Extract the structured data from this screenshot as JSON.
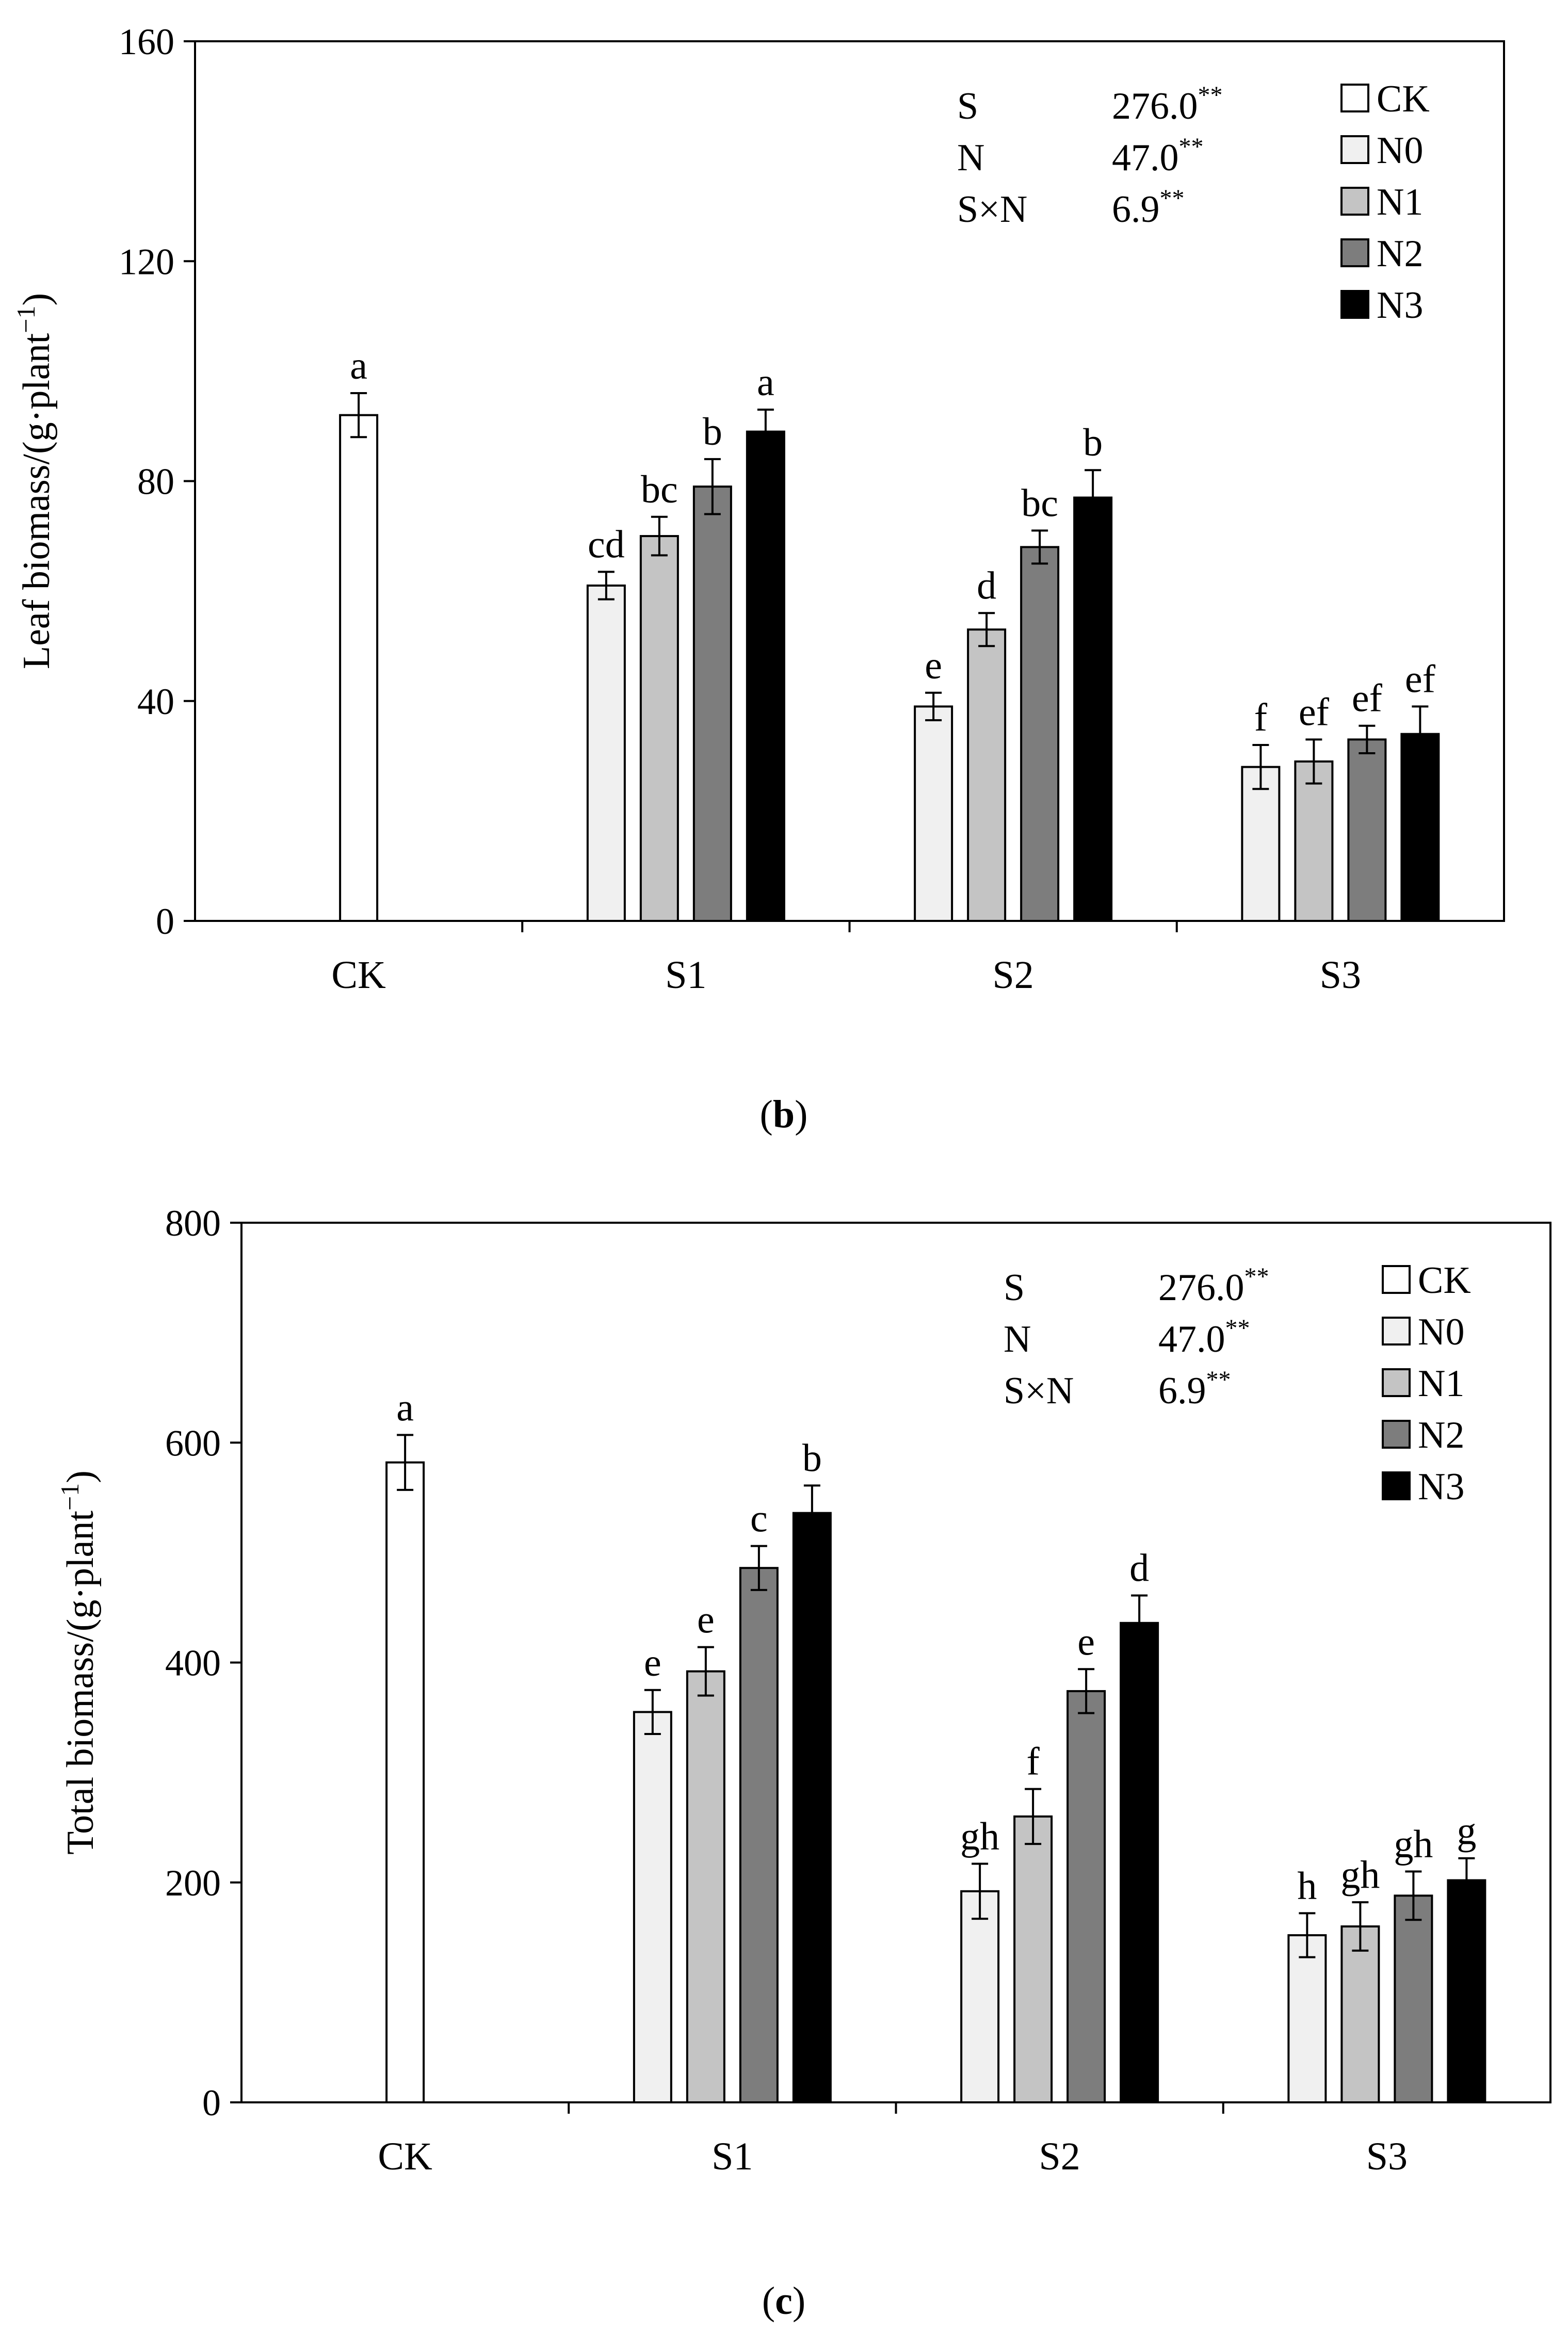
{
  "colors": {
    "CK": "#ffffff",
    "N0": "#f0f0f0",
    "N1": "#c4c4c4",
    "N2": "#7d7d7d",
    "N3": "#000000",
    "outline": "#000000"
  },
  "chart_data": [
    {
      "type": "bar",
      "panel_label": "b",
      "caption": "(b)",
      "ylabel": "Leaf biomass/(g·plant−1)",
      "xlabel": "",
      "ylim": [
        0,
        160
      ],
      "yticks": [
        0,
        40,
        80,
        120,
        160
      ],
      "categories": [
        "CK",
        "S1",
        "S2",
        "S3"
      ],
      "legend": [
        "CK",
        "N0",
        "N1",
        "N2",
        "N3"
      ],
      "legend_position": "top-right",
      "stats": [
        {
          "factor": "S",
          "value": "276.0",
          "sig": "**"
        },
        {
          "factor": "N",
          "value": "47.0",
          "sig": "**"
        },
        {
          "factor": "S×N",
          "value": "6.9",
          "sig": "**"
        }
      ],
      "series": [
        {
          "name": "CK",
          "values": [
            92,
            null,
            null,
            null
          ],
          "errors": [
            4,
            null,
            null,
            null
          ],
          "letters": [
            "a",
            null,
            null,
            null
          ]
        },
        {
          "name": "N0",
          "values": [
            null,
            61,
            39,
            28
          ],
          "errors": [
            null,
            2.5,
            2.5,
            4
          ],
          "letters": [
            null,
            "cd",
            "e",
            "f"
          ]
        },
        {
          "name": "N1",
          "values": [
            null,
            70,
            53,
            29
          ],
          "errors": [
            null,
            3.5,
            3,
            4
          ],
          "letters": [
            null,
            "bc",
            "d",
            "ef"
          ]
        },
        {
          "name": "N2",
          "values": [
            null,
            79,
            68,
            33
          ],
          "errors": [
            null,
            5,
            3,
            2.5
          ],
          "letters": [
            null,
            "b",
            "bc",
            "ef"
          ]
        },
        {
          "name": "N3",
          "values": [
            null,
            89,
            77,
            34
          ],
          "errors": [
            null,
            4,
            5,
            5
          ],
          "letters": [
            null,
            "a",
            "b",
            "ef"
          ]
        }
      ]
    },
    {
      "type": "bar",
      "panel_label": "c",
      "caption": "(c)",
      "ylabel": "Total biomass/(g·plant−1)",
      "xlabel": "",
      "ylim": [
        0,
        800
      ],
      "yticks": [
        0,
        200,
        400,
        600,
        800
      ],
      "categories": [
        "CK",
        "S1",
        "S2",
        "S3"
      ],
      "legend": [
        "CK",
        "N0",
        "N1",
        "N2",
        "N3"
      ],
      "legend_position": "top-right",
      "stats": [
        {
          "factor": "S",
          "value": "276.0",
          "sig": "**"
        },
        {
          "factor": "N",
          "value": "47.0",
          "sig": "**"
        },
        {
          "factor": "S×N",
          "value": "6.9",
          "sig": "**"
        }
      ],
      "series": [
        {
          "name": "CK",
          "values": [
            582,
            null,
            null,
            null
          ],
          "errors": [
            25,
            null,
            null,
            null
          ],
          "letters": [
            "a",
            null,
            null,
            null
          ]
        },
        {
          "name": "N0",
          "values": [
            null,
            355,
            192,
            152
          ],
          "errors": [
            null,
            20,
            25,
            20
          ],
          "letters": [
            null,
            "e",
            "gh",
            "h"
          ]
        },
        {
          "name": "N1",
          "values": [
            null,
            392,
            260,
            160
          ],
          "errors": [
            null,
            22,
            25,
            22
          ],
          "letters": [
            null,
            "e",
            "f",
            "gh"
          ]
        },
        {
          "name": "N2",
          "values": [
            null,
            486,
            374,
            188
          ],
          "errors": [
            null,
            20,
            20,
            22
          ],
          "letters": [
            null,
            "c",
            "e",
            "gh"
          ]
        },
        {
          "name": "N3",
          "values": [
            null,
            536,
            436,
            202
          ],
          "errors": [
            null,
            25,
            25,
            20
          ],
          "letters": [
            null,
            "b",
            "d",
            "g"
          ]
        }
      ]
    }
  ]
}
